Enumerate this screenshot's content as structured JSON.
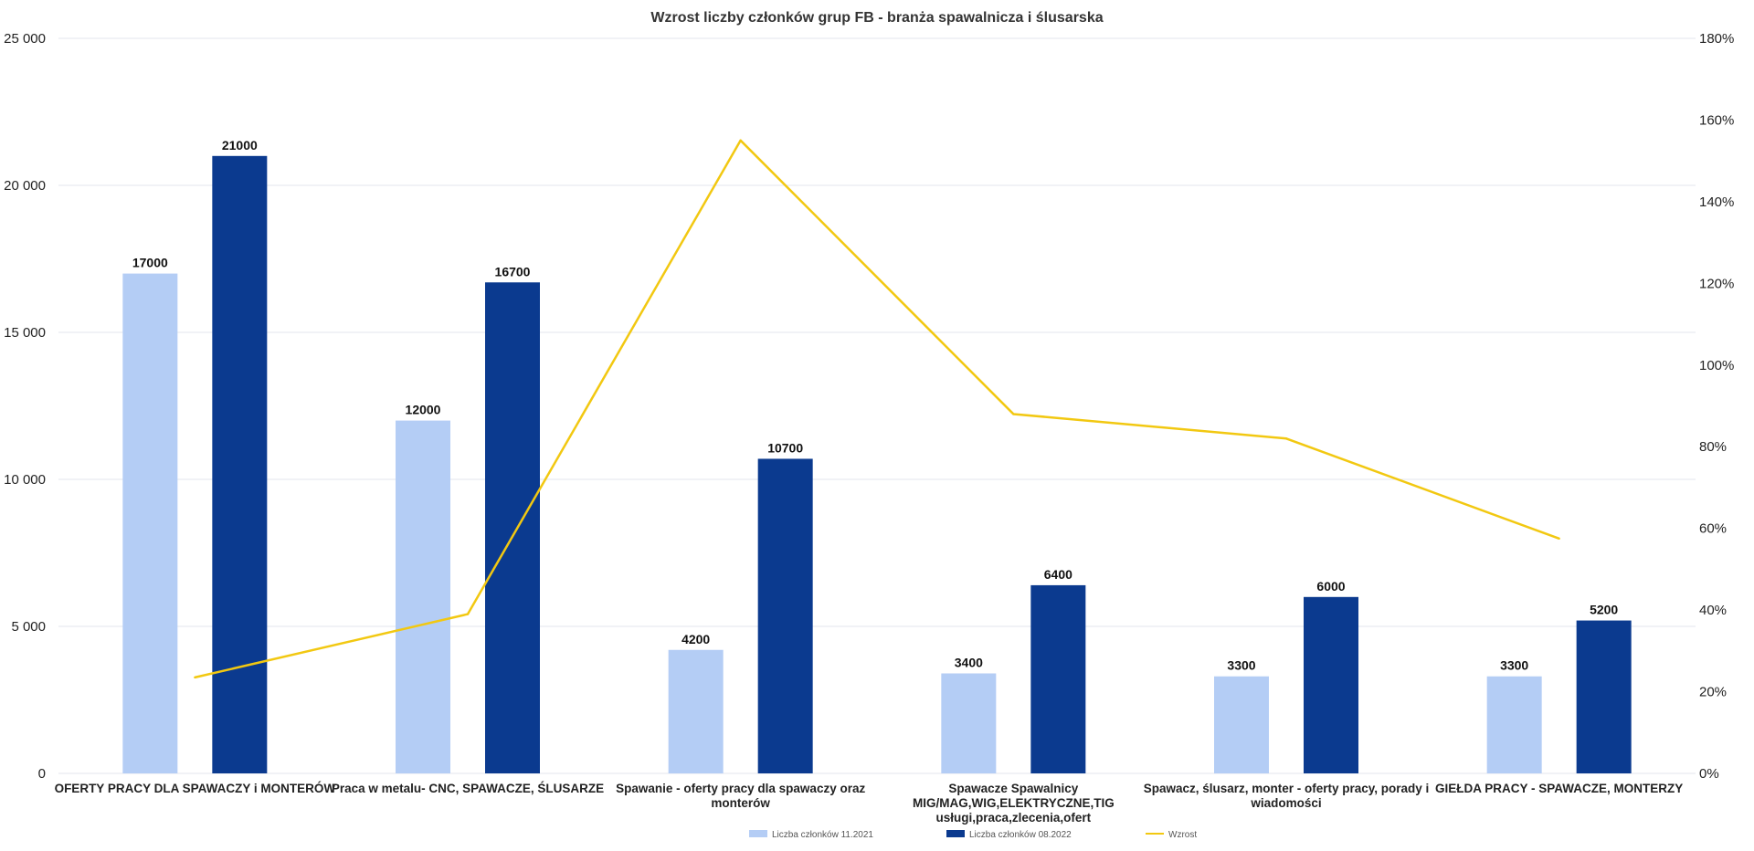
{
  "chart_data": {
    "type": "bar",
    "title": "Wzrost liczby członków grup FB - branża spawalnicza i ślusarska",
    "categories": [
      [
        "OFERTY PRACY DLA SPAWACZY i MONTERÓW"
      ],
      [
        "Praca w metalu- CNC, SPAWACZE, ŚLUSARZE"
      ],
      [
        "Spawanie - oferty pracy dla spawaczy oraz",
        "monterów"
      ],
      [
        "Spawacze Spawalnicy",
        "MIG/MAG,WIG,ELEKTRYCZNE,TIG",
        "usługi,praca,zlecenia,ofert"
      ],
      [
        "Spawacz, ślusarz, monter - oferty pracy, porady i",
        "wiadomości"
      ],
      [
        "GIEŁDA PRACY - SPAWACZE, MONTERZY"
      ]
    ],
    "series": [
      {
        "name": "Liczba członków 11.2021",
        "type": "bar",
        "axis": "left",
        "color": "#b4cdf5",
        "values": [
          17000,
          12000,
          4200,
          3400,
          3300,
          3300
        ]
      },
      {
        "name": "Liczba członków 08.2022",
        "type": "bar",
        "axis": "left",
        "color": "#0b3a8f",
        "values": [
          21000,
          16700,
          10700,
          6400,
          6000,
          5200
        ]
      },
      {
        "name": "Wzrost",
        "type": "line",
        "axis": "right",
        "color": "#f2c811",
        "values": [
          0.235,
          0.39,
          1.55,
          0.88,
          0.82,
          0.575
        ]
      }
    ],
    "y_left": {
      "min": 0,
      "max": 25000,
      "ticks": [
        0,
        5000,
        10000,
        15000,
        20000,
        25000
      ],
      "tick_labels": [
        "0",
        "5 000",
        "10 000",
        "15 000",
        "20 000",
        "25 000"
      ]
    },
    "y_right": {
      "min": 0,
      "max": 1.8,
      "ticks": [
        0,
        0.2,
        0.4,
        0.6,
        0.8,
        1.0,
        1.2,
        1.4,
        1.6,
        1.8
      ],
      "tick_labels": [
        "0%",
        "20%",
        "40%",
        "60%",
        "80%",
        "100%",
        "120%",
        "140%",
        "160%",
        "180%"
      ]
    },
    "grid": true,
    "legend_position": "bottom"
  }
}
